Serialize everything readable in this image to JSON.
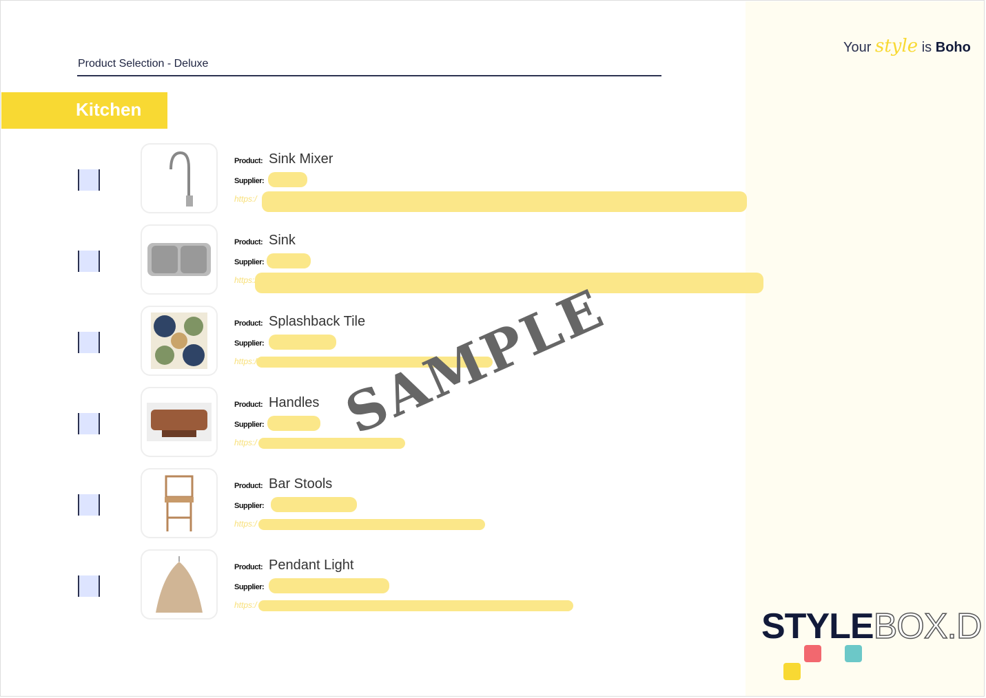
{
  "header": {
    "title": "Product Selection - Deluxe",
    "section": "Kitchen"
  },
  "tagline": {
    "prefix": "Your",
    "script": "style",
    "mid": "is",
    "style_name": "Boho"
  },
  "labels": {
    "product": "Product:",
    "supplier": "Supplier:",
    "url_prefix": "https:/"
  },
  "products": [
    {
      "name": "Sink Mixer",
      "image": "faucet",
      "checked": false
    },
    {
      "name": "Sink",
      "image": "double-sink",
      "checked": false
    },
    {
      "name": "Splashback Tile",
      "image": "patterned-tile",
      "checked": false
    },
    {
      "name": "Handles",
      "image": "wood-handle",
      "checked": false
    },
    {
      "name": "Bar Stools",
      "image": "rattan-stool",
      "checked": false
    },
    {
      "name": "Pendant Light",
      "image": "rattan-pendant",
      "checked": false
    }
  ],
  "watermark": "SAMPLE",
  "logo": {
    "bold": "STYLE",
    "light": "BOX",
    "suffix": ".D"
  },
  "colors": {
    "accent": "#f8d933",
    "navy": "#121a3a",
    "coral": "#f2686f",
    "teal": "#6cc8c8",
    "side_bg": "#fffdf1"
  }
}
